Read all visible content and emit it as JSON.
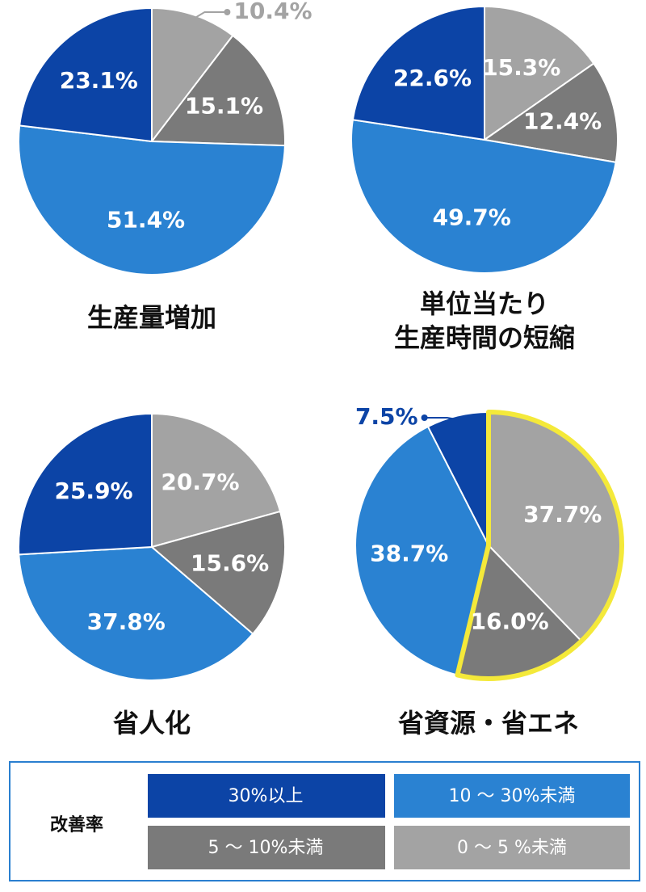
{
  "chart_data": [
    {
      "type": "pie",
      "title": [
        "生産量増加"
      ],
      "values": [
        10.4,
        15.1,
        51.4,
        23.1
      ],
      "value_labels": [
        "10.4%",
        "15.1%",
        "51.4%",
        "23.1%"
      ],
      "outside_labels": [
        0
      ]
    },
    {
      "type": "pie",
      "title": [
        "単位当たり",
        "生産時間の短縮"
      ],
      "values": [
        15.3,
        12.4,
        49.7,
        22.6
      ],
      "value_labels": [
        "15.3%",
        "12.4%",
        "49.7%",
        "22.6%"
      ]
    },
    {
      "type": "pie",
      "title": [
        "省人化"
      ],
      "values": [
        20.7,
        15.6,
        37.8,
        25.9
      ],
      "value_labels": [
        "20.7%",
        "15.6%",
        "37.8%",
        "25.9%"
      ]
    },
    {
      "type": "pie",
      "title": [
        "省資源・省エネ"
      ],
      "values": [
        37.7,
        16.0,
        38.7,
        7.5
      ],
      "value_labels": [
        "37.7%",
        "16.0%",
        "38.7%",
        "7.5%"
      ],
      "outside_labels": [
        3
      ],
      "highlight": [
        0,
        1
      ],
      "highlight_color": "#f4e93a"
    }
  ],
  "legend": {
    "title": "改善率",
    "items": [
      {
        "name": "30%以上",
        "color": "#0c44a6"
      },
      {
        "name": "10 ～ 30%未満",
        "color": "#2a82d2"
      },
      {
        "name": "5 ～ 10%未満",
        "color": "#7a7a7a"
      },
      {
        "name": "0 ～ 5 %未満",
        "color": "#a3a3a3"
      }
    ]
  }
}
